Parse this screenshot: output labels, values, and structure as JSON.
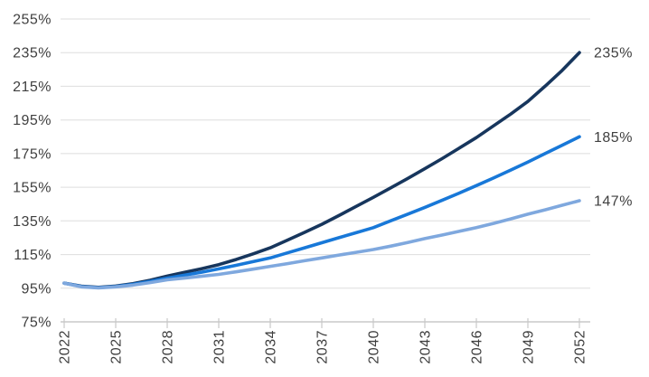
{
  "page": {
    "background": "#FFFFFF"
  },
  "chart_data": {
    "type": "line",
    "title": "",
    "xlabel": "",
    "ylabel": "",
    "grid": "horizontal",
    "legend_position": "end-of-line-labels",
    "x_range": [
      2022,
      2052
    ],
    "y_range": [
      75,
      255
    ],
    "x_tick_labels": [
      "2022",
      "2025",
      "2028",
      "2031",
      "2034",
      "2037",
      "2040",
      "2043",
      "2046",
      "2049",
      "2052"
    ],
    "y_tick_labels": [
      "255%",
      "235%",
      "215%",
      "195%",
      "175%",
      "155%",
      "135%",
      "115%",
      "95%",
      "75%"
    ],
    "years": [
      2022,
      2023,
      2024,
      2025,
      2026,
      2027,
      2028,
      2029,
      2030,
      2031,
      2032,
      2033,
      2034,
      2035,
      2036,
      2037,
      2038,
      2039,
      2040,
      2041,
      2042,
      2043,
      2044,
      2045,
      2046,
      2047,
      2048,
      2049,
      2050,
      2051,
      2052
    ],
    "series": [
      {
        "id": "scenario-high",
        "color": "#17365D",
        "end_label": "235%",
        "values": [
          98,
          96.2,
          95.5,
          96.3,
          97.7,
          99.7,
          102.2,
          104.4,
          106.6,
          109,
          112,
          115.4,
          119,
          123.6,
          128.2,
          133,
          138.2,
          143.6,
          149,
          154.6,
          160.2,
          166,
          172,
          178.2,
          184.5,
          191.5,
          198.5,
          206,
          215,
          224.5,
          235
        ]
      },
      {
        "id": "scenario-mid",
        "color": "#1878D8",
        "end_label": "185%",
        "values": [
          98,
          96,
          95.3,
          96,
          97.3,
          99,
          101,
          102.7,
          104.5,
          106.5,
          108.6,
          110.8,
          113,
          116,
          119,
          122,
          125,
          128,
          131,
          135,
          139,
          143,
          147.2,
          151.5,
          156,
          160.5,
          165.2,
          170,
          175,
          180,
          185
        ]
      },
      {
        "id": "scenario-low",
        "color": "#7FA8DE",
        "end_label": "147%",
        "values": [
          98,
          95.8,
          95.2,
          95.8,
          96.8,
          98.3,
          100,
          101,
          102.1,
          103.2,
          104.7,
          106.3,
          108,
          109.6,
          111.3,
          113,
          114.7,
          116.3,
          118,
          120,
          122.2,
          124.5,
          126.6,
          128.8,
          131,
          133.5,
          136.2,
          139,
          141.6,
          144.3,
          147
        ]
      }
    ],
    "style": {
      "text_color": "#3F3F3F",
      "grid_color": "#DEDEDE",
      "axis_color": "#C9C9C9",
      "line_width": 3.6,
      "font_size": 16
    }
  }
}
